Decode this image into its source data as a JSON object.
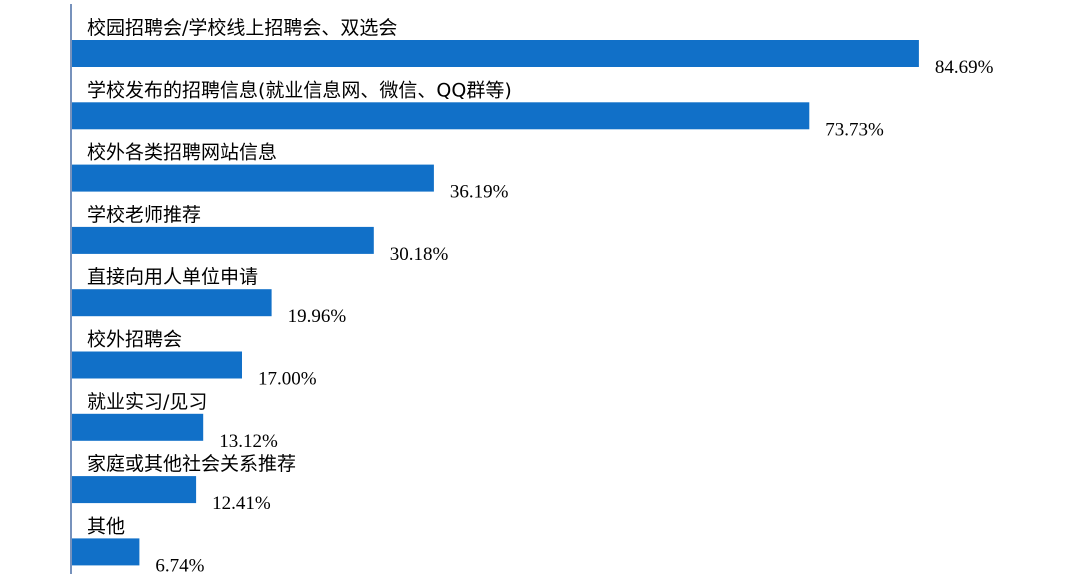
{
  "chart_data": {
    "type": "bar",
    "orientation": "horizontal",
    "categories": [
      "校园招聘会/学校线上招聘会、双选会",
      "学校发布的招聘信息(就业信息网、微信、QQ群等)",
      "校外各类招聘网站信息",
      "学校老师推荐",
      "直接向用人单位申请",
      "校外招聘会",
      "就业实习/见习",
      "家庭或其他社会关系推荐",
      "其他"
    ],
    "values": [
      84.69,
      73.73,
      36.19,
      30.18,
      19.96,
      17.0,
      13.12,
      12.41,
      6.74
    ],
    "value_labels": [
      "84.69%",
      "73.73%",
      "36.19%",
      "30.18%",
      "19.96%",
      "17.00%",
      "13.12%",
      "12.41%",
      "6.74%"
    ],
    "unit": "%",
    "xlim": [
      0,
      100
    ],
    "grid": false,
    "legend": "none",
    "bar_color": "#1170c8",
    "axis_color": "#4a6fa5"
  }
}
